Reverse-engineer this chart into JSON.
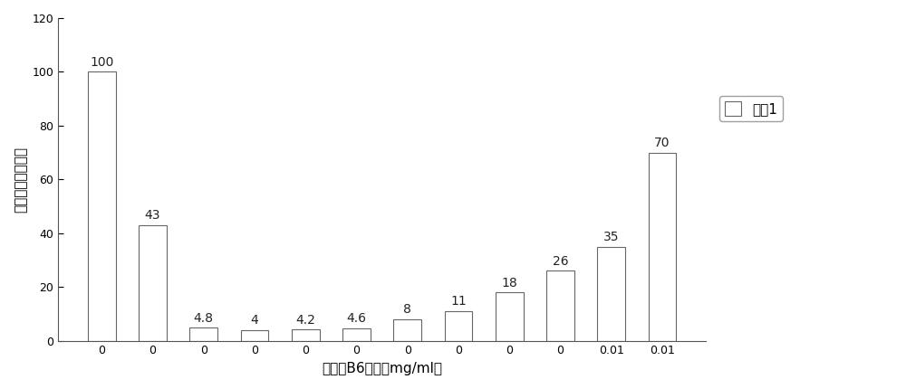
{
  "categories": [
    "0",
    "0",
    "0",
    "0",
    "0",
    "0",
    "0",
    "0",
    "0",
    "0",
    "0.01",
    "0.01"
  ],
  "values": [
    100,
    43,
    4.8,
    4,
    4.2,
    4.6,
    8,
    11,
    18,
    26,
    35,
    70
  ],
  "bar_color": "#ffffff",
  "bar_edge_color": "#666666",
  "bar_width": 0.55,
  "xlabel": "维生素B6用量（mg/ml）",
  "ylabel": "相对酶活力（％）",
  "ylim": [
    0,
    120
  ],
  "yticks": [
    0,
    20,
    40,
    60,
    80,
    100,
    120
  ],
  "legend_label": "系列1",
  "background_color": "#ffffff",
  "label_fontsize": 10,
  "axis_label_fontsize": 11,
  "tick_fontsize": 9
}
